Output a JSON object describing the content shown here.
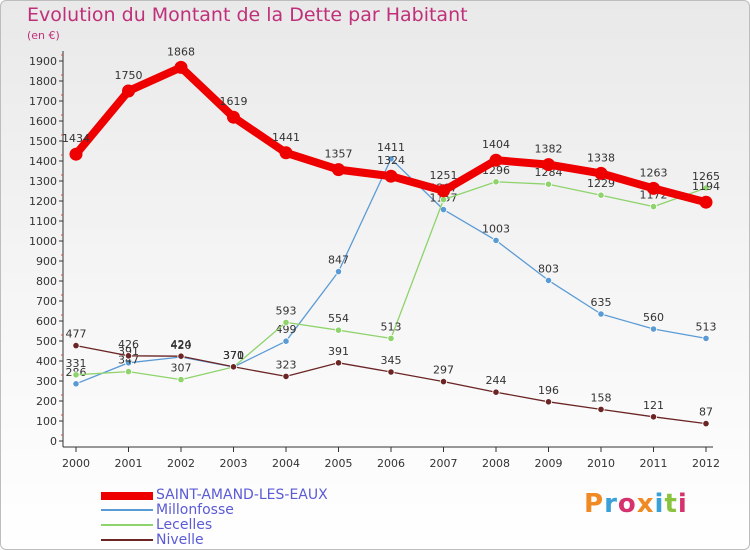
{
  "header": {
    "title": "Evolution du Montant de la Dette par Habitant",
    "unit": "(en €)"
  },
  "logo": {
    "text": "Proxiti",
    "colors": [
      "#f08a24",
      "#3aa0d8",
      "#d6326e",
      "#f08a24",
      "#3aa0d8",
      "#8ac43f",
      "#d6326e"
    ]
  },
  "chart_data": {
    "type": "line",
    "title": "Evolution du Montant de la Dette par Habitant",
    "ylabel": "(en €)",
    "xlabel": "",
    "ylim": [
      0,
      1900
    ],
    "yticks": [
      0,
      100,
      200,
      300,
      400,
      500,
      600,
      700,
      800,
      900,
      1000,
      1100,
      1200,
      1300,
      1400,
      1500,
      1600,
      1700,
      1800,
      1900
    ],
    "x": [
      "2000",
      "2001",
      "2002",
      "2003",
      "2004",
      "2005",
      "2006",
      "2007",
      "2008",
      "2009",
      "2010",
      "2011",
      "2012"
    ],
    "grid": false,
    "legend_position": "bottom-left",
    "series": [
      {
        "name": "SAINT-AMAND-LES-EAUX",
        "color": "#ee0000",
        "values": [
          1434,
          1750,
          1868,
          1619,
          1441,
          1357,
          1324,
          1251,
          1404,
          1382,
          1338,
          1263,
          1194
        ]
      },
      {
        "name": "Millonfosse",
        "color": "#5b9bd5",
        "values": [
          286,
          391,
          420,
          370,
          499,
          847,
          1411,
          1157,
          1003,
          803,
          635,
          560,
          513
        ]
      },
      {
        "name": "Lecelles",
        "color": "#8fd36c",
        "values": [
          331,
          347,
          307,
          370,
          593,
          554,
          513,
          1207,
          1296,
          1284,
          1229,
          1172,
          1265
        ]
      },
      {
        "name": "Nivelle",
        "color": "#6b2525",
        "values": [
          477,
          426,
          424,
          371,
          323,
          391,
          345,
          297,
          244,
          196,
          158,
          121,
          87
        ]
      }
    ]
  }
}
